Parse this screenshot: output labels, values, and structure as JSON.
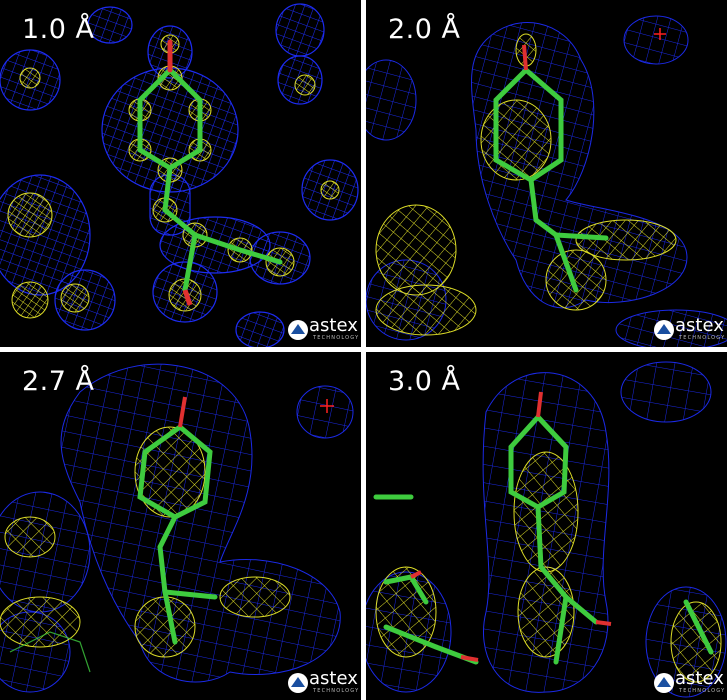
{
  "panels": [
    {
      "label": "1.0 Å",
      "logo": {
        "word": "astex",
        "sub": "TECHNOLOGY"
      }
    },
    {
      "label": "2.0 Å",
      "logo": {
        "word": "astex",
        "sub": "TECHNOLOGY"
      }
    },
    {
      "label": "2.7 Å",
      "logo": {
        "word": "astex",
        "sub": "TECHNOLOGY"
      }
    },
    {
      "label": "3.0 Å",
      "logo": {
        "word": "astex",
        "sub": "TECHNOLOGY"
      }
    }
  ],
  "colors": {
    "background": "#000000",
    "divider": "#ffffff",
    "density_mesh_2fofc": "#1f2fff",
    "density_mesh_fofc": "#e8e82a",
    "carbon": "#3ecb3e",
    "oxygen": "#e03030",
    "nitrogen": "#3050ff",
    "water_marker": "#ff2020"
  },
  "icons": {
    "logo": "astex-logo-icon",
    "water": "water-cross-icon"
  }
}
